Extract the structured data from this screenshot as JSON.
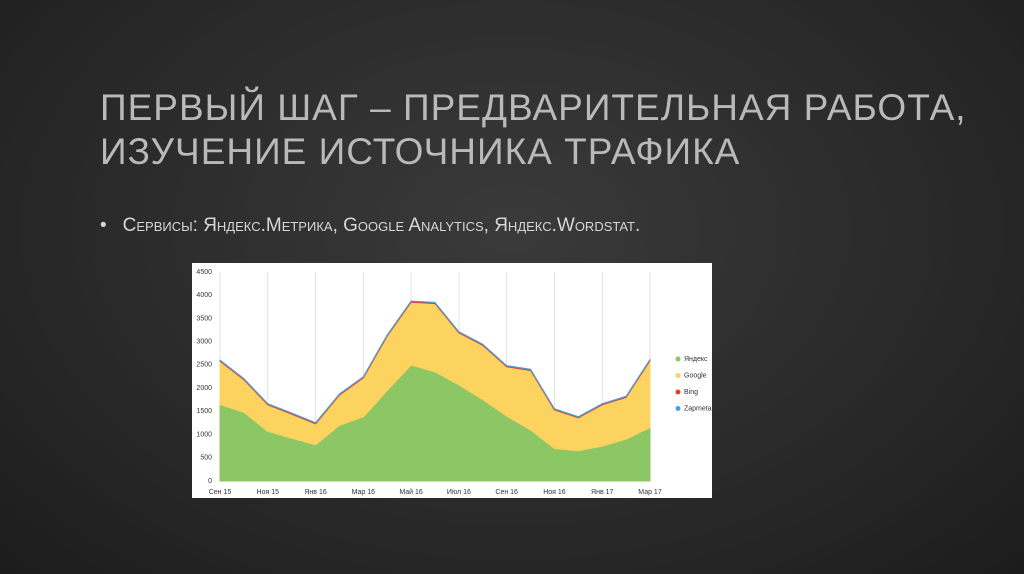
{
  "slide_title_lines": [
    "ПЕРВЫЙ ШАГ – ПРЕДВАРИТЕЛЬНАЯ РАБОТА,",
    "ИЗУЧЕНИЕ ИСТОЧНИКА ТРАФИКА"
  ],
  "bullet": "Сервисы: Яндекс.Метрика, Google Analytics, Яндекс.Wordstat.",
  "chart_data": {
    "type": "stacked_area",
    "categories": [
      "Сен 15",
      null,
      "Ноя 15",
      null,
      "Янв 16",
      null,
      "Мар 16",
      null,
      "Май 16",
      null,
      "Июл 16",
      null,
      "Сен 16",
      null,
      "Ноя 16",
      null,
      "Янв 17",
      null,
      "Мар 17"
    ],
    "series": [
      {
        "name": "Яндекс",
        "color": "#8dc765",
        "values": [
          1650,
          1480,
          1070,
          920,
          780,
          1200,
          1380,
          1950,
          2500,
          2350,
          2070,
          1750,
          1400,
          1100,
          700,
          650,
          750,
          900,
          1150
        ]
      },
      {
        "name": "Google",
        "color": "#fdd35f",
        "values": [
          930,
          700,
          570,
          520,
          450,
          650,
          840,
          1170,
          1350,
          1470,
          1120,
          1170,
          1060,
          1280,
          830,
          710,
          890,
          900,
          1440
        ]
      },
      {
        "name": "Bing",
        "color": "#e0402d",
        "values": [
          20,
          20,
          20,
          20,
          20,
          20,
          20,
          20,
          20,
          20,
          20,
          20,
          20,
          20,
          20,
          20,
          20,
          20,
          20
        ]
      },
      {
        "name": "Zapmeta",
        "color": "#4a9fe0",
        "values": [
          5,
          5,
          5,
          5,
          5,
          5,
          5,
          5,
          5,
          5,
          5,
          5,
          5,
          5,
          5,
          5,
          5,
          5,
          5
        ]
      }
    ],
    "ylim": [
      0,
      4500
    ],
    "yticks": [
      0,
      500,
      1000,
      1500,
      2000,
      2500,
      3000,
      3500,
      4000,
      4500
    ],
    "grid": true,
    "legend": "right"
  }
}
